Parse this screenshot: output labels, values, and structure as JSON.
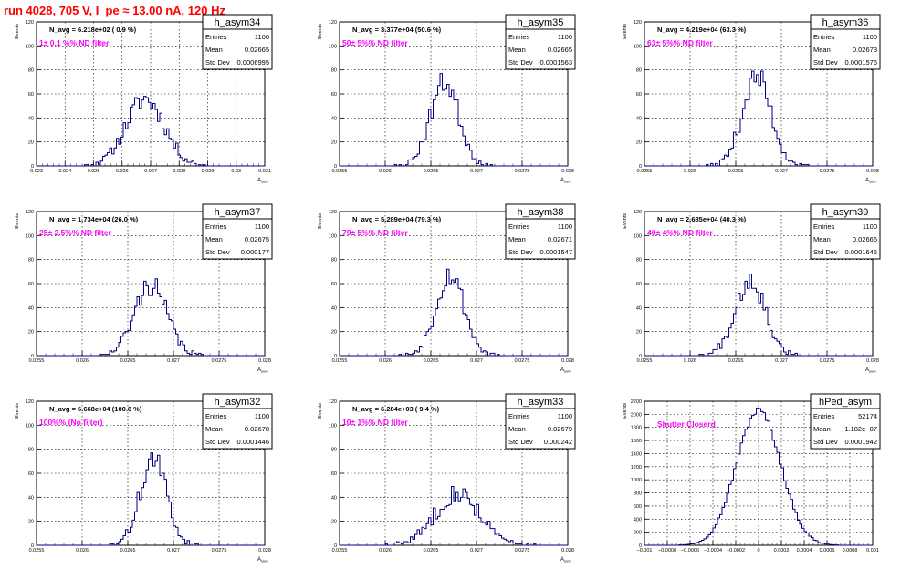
{
  "canvas": {
    "title": "run 4028,   705 V, I_pe ≈ 13.00 nA, 120 Hz"
  },
  "chart_data": [
    {
      "type": "histogram",
      "name": "h_asym34",
      "navg": "N_avg = 6.218e+02 ( 0.9 %)",
      "label": "1± 0.1 %% ND filter",
      "entries": "1100",
      "mean": "0.02665",
      "stddev": "0.0006995",
      "xlim": [
        0.0227,
        0.031
      ],
      "ylim": [
        0,
        120
      ],
      "xticks": [
        "0.023",
        "0.024",
        "0.025",
        "0.026",
        "0.027",
        "0.028",
        "0.029",
        "0.03",
        "0.031"
      ],
      "yticks": [
        "0",
        "20",
        "40",
        "60",
        "80",
        "100",
        "120"
      ],
      "xlabel": "A_sum",
      "ylabel": "Events",
      "mu": 0.02665,
      "sigma": 0.0007,
      "peak": 56,
      "seed": 11
    },
    {
      "type": "histogram",
      "name": "h_asym35",
      "navg": "N_avg = 3.377e+04 (50.6 %)",
      "label": "50± 5%% ND filter",
      "entries": "1100",
      "mean": "0.02665",
      "stddev": "0.0001563",
      "xlim": [
        0.0255,
        0.028
      ],
      "ylim": [
        0,
        120
      ],
      "xticks": [
        "0.0255",
        "0.026",
        "0.0265",
        "0.027",
        "0.0275",
        "0.028"
      ],
      "yticks": [
        "0",
        "20",
        "40",
        "60",
        "80",
        "100",
        "120"
      ],
      "xlabel": "A_sum",
      "ylabel": "Events",
      "mu": 0.02665,
      "sigma": 0.000156,
      "peak": 70,
      "seed": 23
    },
    {
      "type": "histogram",
      "name": "h_asym36",
      "navg": "N_avg = 4.219e+04 (63.3 %)",
      "label": "63± 5%% ND filter",
      "entries": "1100",
      "mean": "0.02673",
      "stddev": "0.0001576",
      "xlim": [
        0.0255,
        0.028
      ],
      "ylim": [
        0,
        120
      ],
      "xticks": [
        "0.0255",
        "0.026",
        "0.0265",
        "0.027",
        "0.0275",
        "0.028"
      ],
      "yticks": [
        "0",
        "20",
        "40",
        "60",
        "80",
        "100",
        "120"
      ],
      "xlabel": "A_sum",
      "ylabel": "Events",
      "mu": 0.02673,
      "sigma": 0.000158,
      "peak": 74,
      "seed": 37
    },
    {
      "type": "histogram",
      "name": "h_asym37",
      "navg": "N_avg = 1.734e+04 (26.0 %)",
      "label": "25± 2.5%% ND filter",
      "entries": "1100",
      "mean": "0.02675",
      "stddev": "0.000177",
      "xlim": [
        0.0255,
        0.028
      ],
      "ylim": [
        0,
        120
      ],
      "xticks": [
        "0.0255",
        "0.026",
        "0.0265",
        "0.027",
        "0.0275",
        "0.028"
      ],
      "yticks": [
        "0",
        "20",
        "40",
        "60",
        "80",
        "100",
        "120"
      ],
      "xlabel": "A_sum",
      "ylabel": "Events",
      "mu": 0.02675,
      "sigma": 0.000177,
      "peak": 59,
      "seed": 41
    },
    {
      "type": "histogram",
      "name": "h_asym38",
      "navg": "N_avg = 5.289e+04 (79.3 %)",
      "label": "79± 5%% ND filter",
      "entries": "1100",
      "mean": "0.02671",
      "stddev": "0.0001547",
      "xlim": [
        0.0255,
        0.028
      ],
      "ylim": [
        0,
        120
      ],
      "xticks": [
        "0.0255",
        "0.026",
        "0.0265",
        "0.027",
        "0.0275",
        "0.028"
      ],
      "yticks": [
        "0",
        "20",
        "40",
        "60",
        "80",
        "100",
        "120"
      ],
      "xlabel": "A_sum",
      "ylabel": "Events",
      "mu": 0.02671,
      "sigma": 0.000155,
      "peak": 68,
      "seed": 53
    },
    {
      "type": "histogram",
      "name": "h_asym39",
      "navg": "N_avg = 2.685e+04 (40.3 %)",
      "label": "40± 4%% ND filter",
      "entries": "1100",
      "mean": "0.02666",
      "stddev": "0.0001646",
      "xlim": [
        0.0255,
        0.028
      ],
      "ylim": [
        0,
        120
      ],
      "xticks": [
        "0.0255",
        "0.026",
        "0.0265",
        "0.027",
        "0.0275",
        "0.028"
      ],
      "yticks": [
        "0",
        "20",
        "40",
        "60",
        "80",
        "100",
        "120"
      ],
      "xlabel": "A_sum",
      "ylabel": "Events",
      "mu": 0.02666,
      "sigma": 0.000165,
      "peak": 64,
      "seed": 67
    },
    {
      "type": "histogram",
      "name": "h_asym32",
      "navg": "N_avg = 6.668e+04 (100.0 %)",
      "label": "100%% (No filter)",
      "entries": "1100",
      "mean": "0.02678",
      "stddev": "0.0001446",
      "xlim": [
        0.0255,
        0.028
      ],
      "ylim": [
        0,
        120
      ],
      "xticks": [
        "0.0255",
        "0.026",
        "0.0265",
        "0.027",
        "0.0275",
        "0.028"
      ],
      "yticks": [
        "0",
        "20",
        "40",
        "60",
        "80",
        "100",
        "120"
      ],
      "xlabel": "A_sum",
      "ylabel": "Events",
      "mu": 0.02678,
      "sigma": 0.000145,
      "peak": 72,
      "seed": 71
    },
    {
      "type": "histogram",
      "name": "h_asym33",
      "navg": "N_avg = 6.284e+03 ( 9.4 %)",
      "label": "10± 1%% ND filter",
      "entries": "1100",
      "mean": "0.02679",
      "stddev": "0.000242",
      "xlim": [
        0.0255,
        0.028
      ],
      "ylim": [
        0,
        120
      ],
      "xticks": [
        "0.0255",
        "0.026",
        "0.0265",
        "0.027",
        "0.0275",
        "0.028"
      ],
      "yticks": [
        "0",
        "20",
        "40",
        "60",
        "80",
        "100",
        "120"
      ],
      "xlabel": "A_sum",
      "ylabel": "Events",
      "mu": 0.02679,
      "sigma": 0.000242,
      "peak": 44,
      "seed": 83
    },
    {
      "type": "histogram",
      "name": "hPed_asym",
      "navg": "",
      "label": "Shutter Closerd",
      "entries": "52174",
      "mean": "1.182e−07",
      "stddev": "0.0001942",
      "xlim": [
        -0.001,
        0.001
      ],
      "ylim": [
        0,
        2200
      ],
      "xticks": [
        "−0.001",
        "−0.0008",
        "−0.0006",
        "−0.0004",
        "−0.0002",
        "0",
        "0.0002",
        "0.0004",
        "0.0006",
        "0.0008",
        "0.001"
      ],
      "yticks": [
        "0",
        "200",
        "400",
        "600",
        "800",
        "1000",
        "1200",
        "1400",
        "1600",
        "1800",
        "2000",
        "2200"
      ],
      "xlabel": "",
      "ylabel": "Events",
      "mu": 0.0,
      "sigma": 0.000194,
      "peak": 2060,
      "seed": 97
    }
  ],
  "stats_labels": {
    "entries": "Entries",
    "mean": "Mean",
    "stddev": "Std Dev"
  },
  "colors": {
    "line": "#000080",
    "title": "#ff0000",
    "label": "#ff00ff",
    "grid": "#000000"
  }
}
